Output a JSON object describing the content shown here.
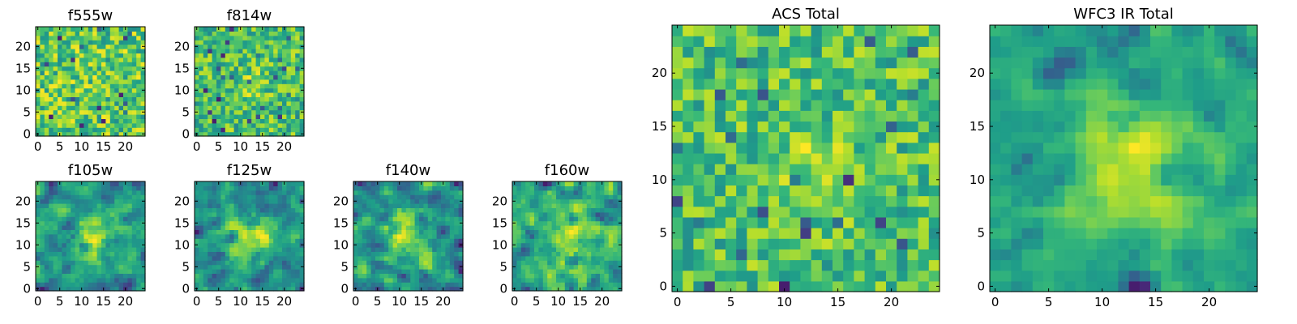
{
  "chart_data": [
    {
      "type": "heatmap",
      "title": "f555w",
      "xticks": [
        0,
        5,
        10,
        15,
        20
      ],
      "yticks": [
        0,
        5,
        10,
        15,
        20
      ],
      "xlim": [
        0,
        25
      ],
      "ylim": [
        0,
        25
      ],
      "grid": "25x25",
      "colormap": "viridis",
      "pattern": "noise"
    },
    {
      "type": "heatmap",
      "title": "f814w",
      "xticks": [
        0,
        5,
        10,
        15,
        20
      ],
      "yticks": [
        0,
        5,
        10,
        15,
        20
      ],
      "xlim": [
        0,
        25
      ],
      "ylim": [
        0,
        25
      ],
      "grid": "25x25",
      "colormap": "viridis",
      "pattern": "noise with faint central source"
    },
    {
      "type": "heatmap",
      "title": "f105w",
      "xticks": [
        0,
        5,
        10,
        15,
        20
      ],
      "yticks": [
        0,
        5,
        10,
        15,
        20
      ],
      "xlim": [
        0,
        25
      ],
      "ylim": [
        0,
        25
      ],
      "grid": "25x25",
      "colormap": "viridis",
      "pattern": "central source"
    },
    {
      "type": "heatmap",
      "title": "f125w",
      "xticks": [
        0,
        5,
        10,
        15,
        20
      ],
      "yticks": [
        0,
        5,
        10,
        15,
        20
      ],
      "xlim": [
        0,
        25
      ],
      "ylim": [
        0,
        25
      ],
      "grid": "25x25",
      "colormap": "viridis",
      "pattern": "central source"
    },
    {
      "type": "heatmap",
      "title": "f140w",
      "xticks": [
        0,
        5,
        10,
        15,
        20
      ],
      "yticks": [
        0,
        5,
        10,
        15,
        20
      ],
      "xlim": [
        0,
        25
      ],
      "ylim": [
        0,
        25
      ],
      "grid": "25x25",
      "colormap": "viridis",
      "pattern": "central source"
    },
    {
      "type": "heatmap",
      "title": "f160w",
      "xticks": [
        0,
        5,
        10,
        15,
        20
      ],
      "yticks": [
        0,
        5,
        10,
        15,
        20
      ],
      "xlim": [
        0,
        25
      ],
      "ylim": [
        0,
        25
      ],
      "grid": "25x25",
      "colormap": "viridis",
      "pattern": "central source"
    },
    {
      "type": "heatmap",
      "title": "ACS Total",
      "xticks": [
        0,
        5,
        10,
        15,
        20
      ],
      "yticks": [
        0,
        5,
        10,
        15,
        20
      ],
      "xlim": [
        0,
        25
      ],
      "ylim": [
        0,
        25
      ],
      "grid": "25x25",
      "colormap": "viridis",
      "pattern": "noise with central source"
    },
    {
      "type": "heatmap",
      "title": "WFC3 IR Total",
      "xticks": [
        0,
        5,
        10,
        15,
        20
      ],
      "yticks": [
        0,
        5,
        10,
        15,
        20
      ],
      "xlim": [
        0,
        25
      ],
      "ylim": [
        0,
        25
      ],
      "grid": "25x25",
      "colormap": "viridis",
      "pattern": "bright central source"
    }
  ]
}
